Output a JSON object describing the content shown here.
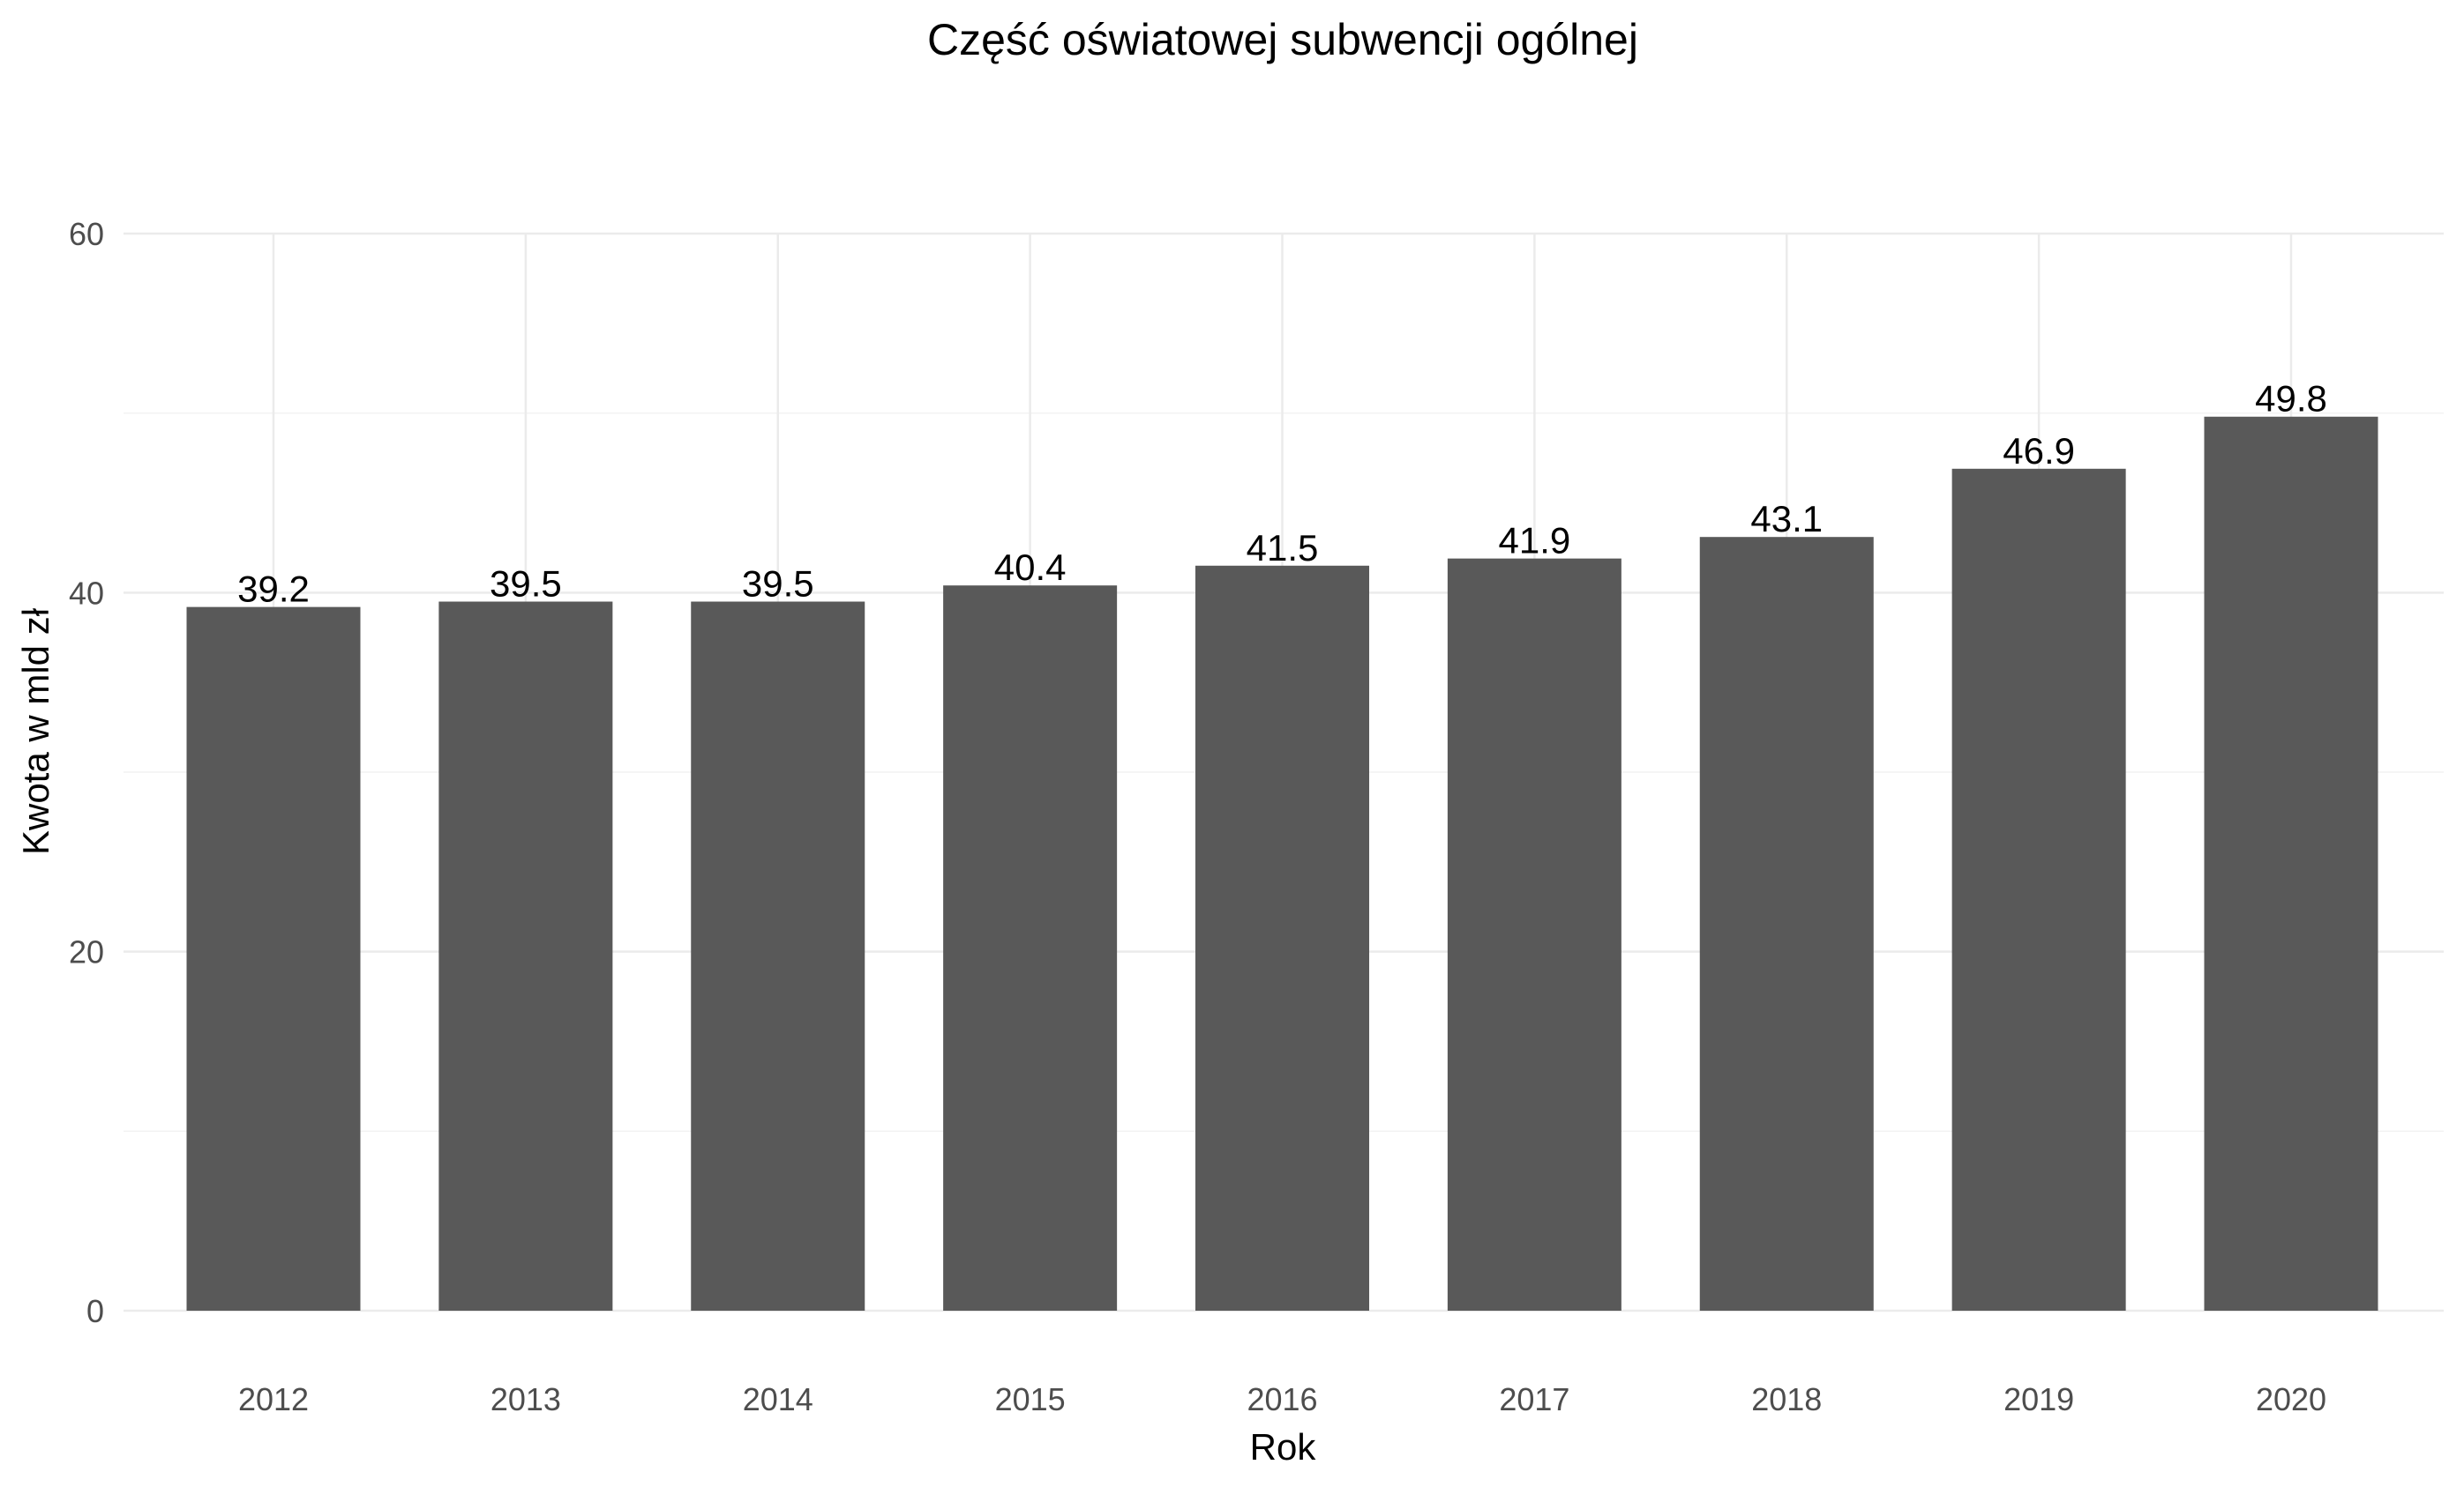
{
  "chart_data": {
    "type": "bar",
    "title": "Część oświatowej subwencji ogólnej",
    "xlabel": "Rok",
    "ylabel": "Kwota w mld zł",
    "categories": [
      "2012",
      "2013",
      "2014",
      "2015",
      "2016",
      "2017",
      "2018",
      "2019",
      "2020"
    ],
    "values": [
      39.2,
      39.5,
      39.5,
      40.4,
      41.5,
      41.9,
      43.1,
      46.9,
      49.8
    ],
    "data_labels": [
      "39.2",
      "39.5",
      "39.5",
      "40.4",
      "41.5",
      "41.9",
      "43.1",
      "46.9",
      "49.8"
    ],
    "ylim": [
      0,
      60
    ],
    "yticks": [
      0,
      20,
      40,
      60
    ],
    "ytick_labels": [
      "0",
      "20",
      "40",
      "60"
    ],
    "grid": true,
    "legend": "none",
    "bar_color": "#595959"
  }
}
